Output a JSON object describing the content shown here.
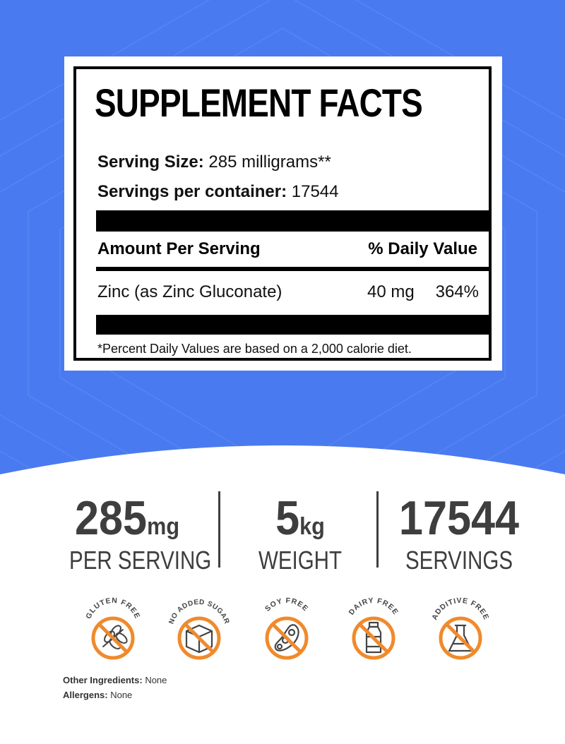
{
  "colors": {
    "banner_blue": "#4a7af0",
    "badge_orange": "#f08a2c",
    "stat_gray": "#3e3e3e"
  },
  "facts": {
    "title": "SUPPLEMENT FACTS",
    "serving_size_label": "Serving Size:",
    "serving_size_value": "285 milligrams**",
    "servings_label": "Servings per container:",
    "servings_value": "17544",
    "amount_header": "Amount Per Serving",
    "dv_header": "% Daily Value",
    "ingredient_name": "Zinc (as Zinc Gluconate)",
    "ingredient_amount": "40 mg",
    "ingredient_dv": "364%",
    "footnote": "*Percent Daily Values are based on a 2,000 calorie diet."
  },
  "stats": [
    {
      "number": "285",
      "unit": "mg",
      "caption": "PER SERVING"
    },
    {
      "number": "5",
      "unit": "kg",
      "caption": "WEIGHT"
    },
    {
      "number": "17544",
      "unit": "",
      "caption": "SERVINGS"
    }
  ],
  "badges": [
    {
      "label": "GLUTEN FREE",
      "icon": "wheat-icon"
    },
    {
      "label": "NO ADDED SUGAR",
      "icon": "sugar-cube-icon"
    },
    {
      "label": "SOY FREE",
      "icon": "soybean-icon"
    },
    {
      "label": "DAIRY FREE",
      "icon": "milk-bottle-icon"
    },
    {
      "label": "ADDITIVE FREE",
      "icon": "flask-icon"
    }
  ],
  "ingredients": {
    "other_label": "Other Ingredients:",
    "other_value": "None",
    "allergens_label": "Allergens:",
    "allergens_value": "None"
  }
}
